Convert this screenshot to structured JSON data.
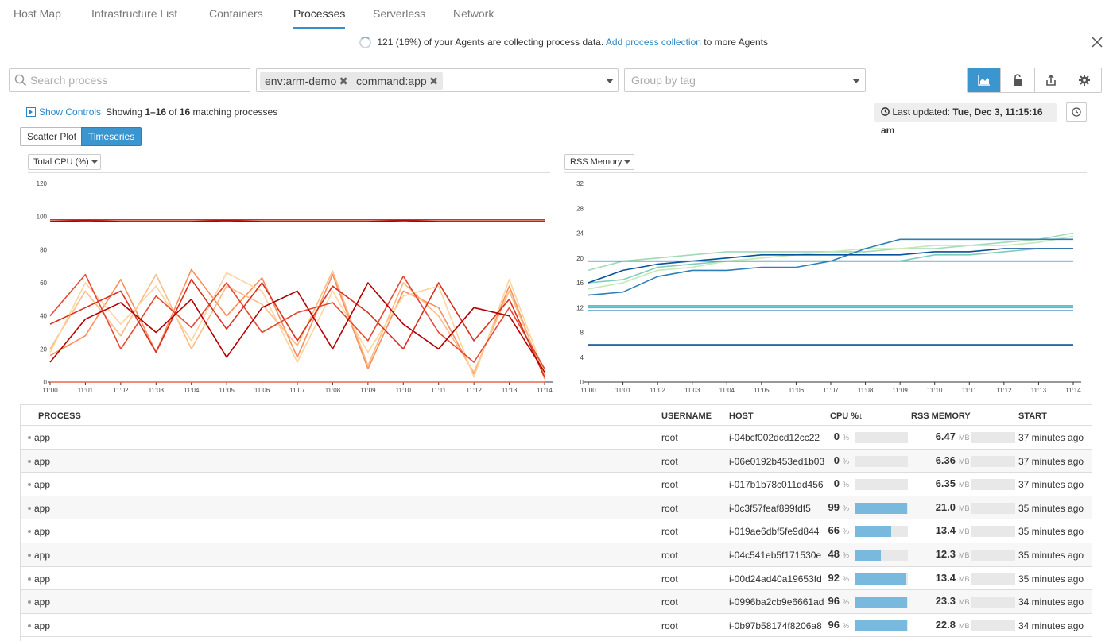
{
  "nav": {
    "tabs": [
      {
        "label": "Host Map"
      },
      {
        "label": "Infrastructure List"
      },
      {
        "label": "Containers"
      },
      {
        "label": "Processes"
      },
      {
        "label": "Serverless"
      },
      {
        "label": "Network"
      }
    ],
    "active": "Processes"
  },
  "banner": {
    "text": "121 (16%) of your Agents are collecting process data.",
    "link": "Add process collection",
    "suffix": "to more Agents"
  },
  "filters": {
    "search_placeholder": "Search process",
    "tags": [
      "env:arm-demo",
      "command:app"
    ],
    "groupby_placeholder": "Group by tag"
  },
  "toolbar": {
    "icons": [
      "area-chart-icon",
      "unlock-icon",
      "export-icon",
      "settings-icon"
    ]
  },
  "controls": {
    "show_controls": "Show Controls",
    "showing_prefix": "Showing",
    "range": "1–16",
    "of": "of",
    "total": "16",
    "showing_suffix": "matching processes",
    "last_updated_label": "Last updated:",
    "last_updated_value": "Tue, Dec 3, 11:15:16 am",
    "view_scatter": "Scatter Plot",
    "view_timeseries": "Timeseries"
  },
  "colors": {
    "accent": "#3b95cf",
    "link": "#2a86c4",
    "cpu_palette": [
      "#d7301f",
      "#b30000",
      "#ef6548",
      "#fc8d59",
      "#fdbb84",
      "#fdd49e",
      "#e34a33"
    ],
    "mem_palette": [
      "#08519c",
      "#3182bd",
      "#6baed6",
      "#41b6c4",
      "#7fcdbb",
      "#a1dab4",
      "#c7e9b4",
      "#2c7fb8"
    ]
  },
  "chart_data": [
    {
      "type": "line",
      "title": "Total CPU (%)",
      "x": [
        "11:00",
        "11:01",
        "11:02",
        "11:03",
        "11:04",
        "11:05",
        "11:06",
        "11:07",
        "11:08",
        "11:09",
        "11:10",
        "11:11",
        "11:12",
        "11:13",
        "11:14"
      ],
      "ylim": [
        0,
        120
      ],
      "yticks": [
        0,
        20,
        40,
        60,
        80,
        100,
        120
      ],
      "grid": false,
      "series": [
        {
          "values": [
            98,
            98,
            98,
            98,
            98,
            98,
            98,
            98,
            98,
            98,
            98,
            98,
            98,
            98,
            98
          ]
        },
        {
          "values": [
            97,
            97.5,
            97,
            97,
            97,
            97.5,
            97,
            97,
            97,
            97,
            97.5,
            97,
            97,
            97,
            97
          ]
        },
        {
          "values": [
            0,
            0,
            0,
            0,
            0,
            0,
            0,
            0,
            0,
            0,
            0,
            0,
            0,
            0,
            0
          ]
        },
        {
          "values": [
            16,
            28,
            62,
            18,
            68,
            40,
            63,
            15,
            65,
            8,
            55,
            45,
            5,
            58,
            2
          ]
        },
        {
          "values": [
            20,
            55,
            28,
            65,
            20,
            58,
            47,
            22,
            67,
            10,
            60,
            40,
            6,
            55,
            4
          ]
        },
        {
          "values": [
            18,
            60,
            35,
            58,
            25,
            66,
            55,
            12,
            55,
            18,
            52,
            58,
            3,
            62,
            5
          ]
        },
        {
          "values": [
            40,
            65,
            20,
            52,
            33,
            60,
            30,
            42,
            48,
            25,
            64,
            30,
            12,
            45,
            8
          ]
        },
        {
          "values": [
            35,
            45,
            55,
            18,
            62,
            32,
            60,
            25,
            58,
            42,
            20,
            60,
            25,
            50,
            3
          ]
        },
        {
          "values": [
            12,
            38,
            48,
            30,
            50,
            15,
            45,
            55,
            20,
            60,
            35,
            20,
            45,
            40,
            6
          ]
        }
      ]
    },
    {
      "type": "line",
      "title": "RSS Memory",
      "x": [
        "11:00",
        "11:01",
        "11:02",
        "11:03",
        "11:04",
        "11:05",
        "11:06",
        "11:07",
        "11:08",
        "11:09",
        "11:10",
        "11:11",
        "11:12",
        "11:13",
        "11:14"
      ],
      "ylim": [
        0,
        32
      ],
      "yticks": [
        0,
        4,
        8,
        12,
        16,
        20,
        24,
        28,
        32
      ],
      "grid": false,
      "series": [
        {
          "values": [
            6.0,
            6.0,
            6.0,
            6.0,
            6.0,
            6.0,
            6.0,
            6.0,
            6.0,
            6.0,
            6.0,
            6.0,
            6.0,
            6.0,
            6.0
          ]
        },
        {
          "values": [
            11.5,
            11.5,
            11.5,
            11.5,
            11.5,
            11.5,
            11.5,
            11.5,
            11.5,
            11.5,
            11.5,
            11.5,
            11.5,
            11.5,
            11.5
          ]
        },
        {
          "values": [
            12.0,
            12.0,
            12.0,
            12.0,
            12.0,
            12.0,
            12.0,
            12.0,
            12.0,
            12.0,
            12.0,
            12.0,
            12.0,
            12.0,
            12.0
          ]
        },
        {
          "values": [
            12.3,
            12.3,
            12.3,
            12.3,
            12.3,
            12.3,
            12.3,
            12.3,
            12.3,
            12.3,
            12.3,
            12.3,
            12.3,
            12.3,
            12.3
          ]
        },
        {
          "values": [
            16.0,
            16.5,
            18.5,
            19.0,
            19.5,
            19.5,
            19.5,
            19.5,
            19.5,
            19.5,
            20.5,
            20.5,
            21.0,
            21.5,
            21.5
          ]
        },
        {
          "values": [
            18.0,
            19.5,
            20.0,
            20.5,
            21.0,
            21.0,
            21.0,
            21.0,
            21.0,
            21.5,
            21.5,
            22.0,
            22.5,
            23.0,
            24.0
          ]
        },
        {
          "values": [
            15.0,
            16.0,
            18.0,
            18.5,
            19.5,
            20.0,
            20.5,
            21.0,
            21.5,
            21.5,
            22.0,
            22.0,
            22.0,
            22.5,
            23.5
          ]
        },
        {
          "values": [
            14.0,
            14.5,
            17.0,
            18.0,
            18.0,
            18.5,
            18.5,
            19.5,
            21.5,
            23.0,
            23.0,
            23.0,
            23.0,
            23.0,
            23.0
          ]
        },
        {
          "values": [
            16.0,
            18.0,
            19.0,
            19.5,
            20.0,
            20.5,
            20.5,
            20.5,
            20.5,
            20.5,
            21.0,
            21.0,
            21.5,
            21.5,
            21.5
          ]
        },
        {
          "values": [
            19.5,
            19.5,
            19.5,
            19.5,
            19.5,
            19.5,
            19.5,
            19.5,
            19.5,
            19.5,
            19.5,
            19.5,
            19.5,
            19.5,
            19.5
          ]
        }
      ]
    }
  ],
  "table": {
    "headers": {
      "process": "PROCESS",
      "username": "USERNAME",
      "host": "HOST",
      "cpu": "CPU %↓",
      "rss": "RSS MEMORY",
      "start": "START"
    },
    "cpu_unit": "%",
    "mem_unit": "MB",
    "rows": [
      {
        "process": "app",
        "user": "root",
        "host": "i-04bcf002dcd12cc22",
        "cpu": "0",
        "cpu_frac": 0.0,
        "mem": "6.47",
        "mem_frac": 0.0,
        "start": "37 minutes ago"
      },
      {
        "process": "app",
        "user": "root",
        "host": "i-06e0192b453ed1b03",
        "cpu": "0",
        "cpu_frac": 0.0,
        "mem": "6.36",
        "mem_frac": 0.0,
        "start": "37 minutes ago"
      },
      {
        "process": "app",
        "user": "root",
        "host": "i-017b1b78c011dd456",
        "cpu": "0",
        "cpu_frac": 0.0,
        "mem": "6.35",
        "mem_frac": 0.0,
        "start": "37 minutes ago"
      },
      {
        "process": "app",
        "user": "root",
        "host": "i-0c3f57feaf899fdf5",
        "cpu": "99",
        "cpu_frac": 0.99,
        "mem": "21.0",
        "mem_frac": 0.0,
        "start": "35 minutes ago"
      },
      {
        "process": "app",
        "user": "root",
        "host": "i-019ae6dbf5fe9d844",
        "cpu": "66",
        "cpu_frac": 0.68,
        "mem": "13.4",
        "mem_frac": 0.0,
        "start": "35 minutes ago"
      },
      {
        "process": "app",
        "user": "root",
        "host": "i-04c541eb5f171530e",
        "cpu": "48",
        "cpu_frac": 0.49,
        "mem": "12.3",
        "mem_frac": 0.0,
        "start": "35 minutes ago"
      },
      {
        "process": "app",
        "user": "root",
        "host": "i-00d24ad40a19653fd",
        "cpu": "92",
        "cpu_frac": 0.95,
        "mem": "13.4",
        "mem_frac": 0.0,
        "start": "35 minutes ago"
      },
      {
        "process": "app",
        "user": "root",
        "host": "i-0996ba2cb9e6661ad",
        "cpu": "96",
        "cpu_frac": 0.99,
        "mem": "23.3",
        "mem_frac": 0.0,
        "start": "34 minutes ago"
      },
      {
        "process": "app",
        "user": "root",
        "host": "i-0b97b58174f8206a8",
        "cpu": "96",
        "cpu_frac": 0.99,
        "mem": "22.8",
        "mem_frac": 0.0,
        "start": "34 minutes ago"
      }
    ]
  }
}
